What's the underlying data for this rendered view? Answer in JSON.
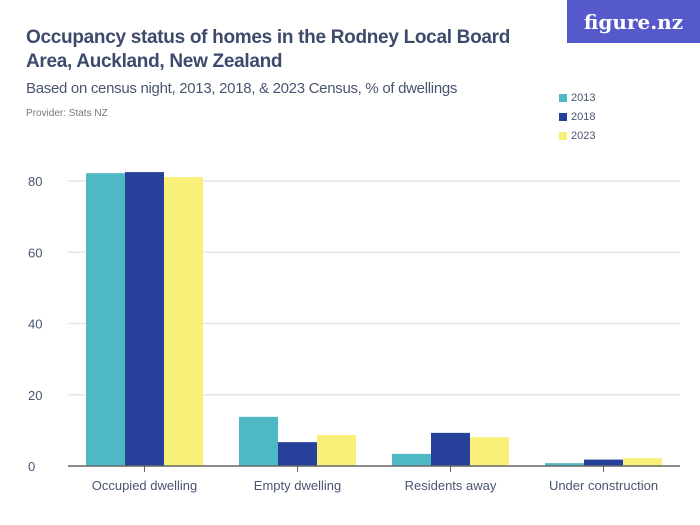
{
  "title": "Occupancy status of homes in the Rodney Local Board Area, Auckland, New Zealand",
  "subtitle": "Based on census night, 2013, 2018, & 2023 Census, % of dwellings",
  "provider": "Provider: Stats NZ",
  "logo": "figure.nz",
  "chart_data": {
    "type": "bar",
    "categories": [
      "Occupied dwelling",
      "Empty dwelling",
      "Residents away",
      "Under construction"
    ],
    "series": [
      {
        "name": "2013",
        "color": "#4fb8c5",
        "values": [
          82.2,
          13.8,
          3.4,
          0.8
        ]
      },
      {
        "name": "2018",
        "color": "#27419a",
        "values": [
          82.5,
          6.7,
          9.3,
          1.8
        ]
      },
      {
        "name": "2023",
        "color": "#f9f07a",
        "values": [
          81.1,
          8.7,
          8.1,
          2.2
        ]
      }
    ],
    "ylim": [
      0,
      80
    ],
    "yticks": [
      0,
      20,
      40,
      60,
      80
    ],
    "grid": true,
    "legend": "top-right"
  }
}
